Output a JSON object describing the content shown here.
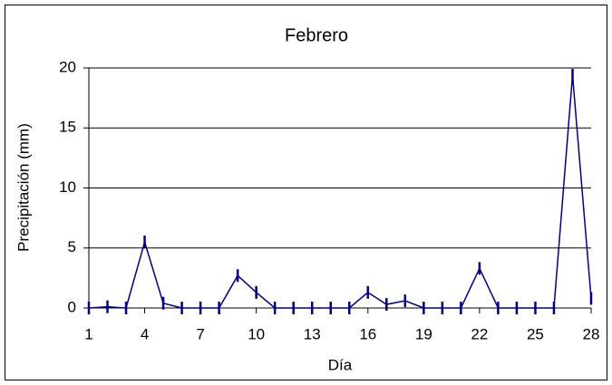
{
  "chart_data": {
    "type": "line",
    "title": "Febrero",
    "x_label": "Día",
    "y_label": "Precipitación (mm)",
    "x": [
      1,
      2,
      3,
      4,
      5,
      6,
      7,
      8,
      9,
      10,
      11,
      12,
      13,
      14,
      15,
      16,
      17,
      18,
      19,
      20,
      21,
      22,
      23,
      24,
      25,
      26,
      27,
      28
    ],
    "series": [
      {
        "name": "Precipitación",
        "color": "#000080",
        "values": [
          0,
          0.1,
          0,
          5.5,
          0.4,
          0,
          0,
          0,
          2.7,
          1.3,
          0,
          0,
          0,
          0,
          0,
          1.3,
          0.3,
          0.6,
          0,
          0,
          0,
          3.3,
          0,
          0,
          0,
          0,
          19.4,
          0.8
        ]
      }
    ],
    "xlim": [
      1,
      28
    ],
    "xticks": [
      1,
      4,
      7,
      10,
      13,
      16,
      19,
      22,
      25,
      28
    ],
    "ylim": [
      0,
      20
    ],
    "yticks": [
      0,
      5,
      10,
      15,
      20
    ],
    "grid": true
  }
}
